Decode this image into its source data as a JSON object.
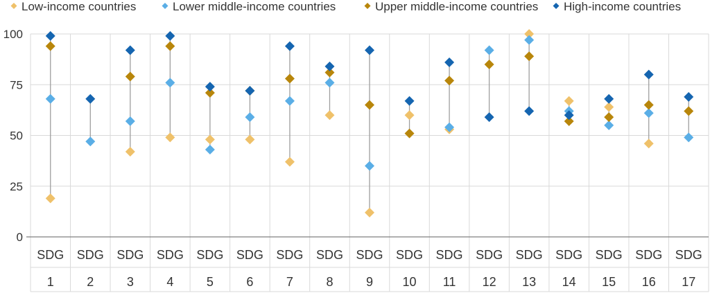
{
  "chart_data": {
    "type": "scatter",
    "title": "",
    "xlabel": "",
    "ylabel": "",
    "ylim": [
      0,
      100
    ],
    "yticks": [
      0,
      25,
      50,
      75,
      100
    ],
    "grid": true,
    "legend_position": "top",
    "categories": [
      {
        "line1": "SDG",
        "line2": "1"
      },
      {
        "line1": "SDG",
        "line2": "2"
      },
      {
        "line1": "SDG",
        "line2": "3"
      },
      {
        "line1": "SDG",
        "line2": "4"
      },
      {
        "line1": "SDG",
        "line2": "5"
      },
      {
        "line1": "SDG",
        "line2": "6"
      },
      {
        "line1": "SDG",
        "line2": "7"
      },
      {
        "line1": "SDG",
        "line2": "8"
      },
      {
        "line1": "SDG",
        "line2": "9"
      },
      {
        "line1": "SDG",
        "line2": "10"
      },
      {
        "line1": "SDG",
        "line2": "11"
      },
      {
        "line1": "SDG",
        "line2": "12"
      },
      {
        "line1": "SDG",
        "line2": "13"
      },
      {
        "line1": "SDG",
        "line2": "14"
      },
      {
        "line1": "SDG",
        "line2": "15"
      },
      {
        "line1": "SDG",
        "line2": "16"
      },
      {
        "line1": "SDG",
        "line2": "17"
      }
    ],
    "series": [
      {
        "name": "Low-income countries",
        "color": "#EFC16A",
        "values": [
          19,
          null,
          42,
          49,
          48,
          48,
          37,
          60,
          12,
          60,
          53,
          null,
          100,
          67,
          64,
          46,
          null
        ]
      },
      {
        "name": "Lower middle-income countries",
        "color": "#5AAEE6",
        "values": [
          68,
          47,
          57,
          76,
          43,
          59,
          67,
          76,
          35,
          null,
          54,
          92,
          97,
          62,
          55,
          61,
          49
        ]
      },
      {
        "name": "Upper middle-income countries",
        "color": "#B8860B",
        "values": [
          94,
          null,
          79,
          94,
          71,
          72,
          78,
          81,
          65,
          51,
          77,
          85,
          89,
          57,
          59,
          65,
          62
        ]
      },
      {
        "name": "High-income countries",
        "color": "#1565B0",
        "values": [
          99,
          68,
          92,
          99,
          74,
          72,
          94,
          84,
          92,
          67,
          86,
          59,
          62,
          60,
          68,
          80,
          69
        ]
      }
    ],
    "range_line_color": "#9E9E9E",
    "grid_color": "#D9D9D9"
  }
}
